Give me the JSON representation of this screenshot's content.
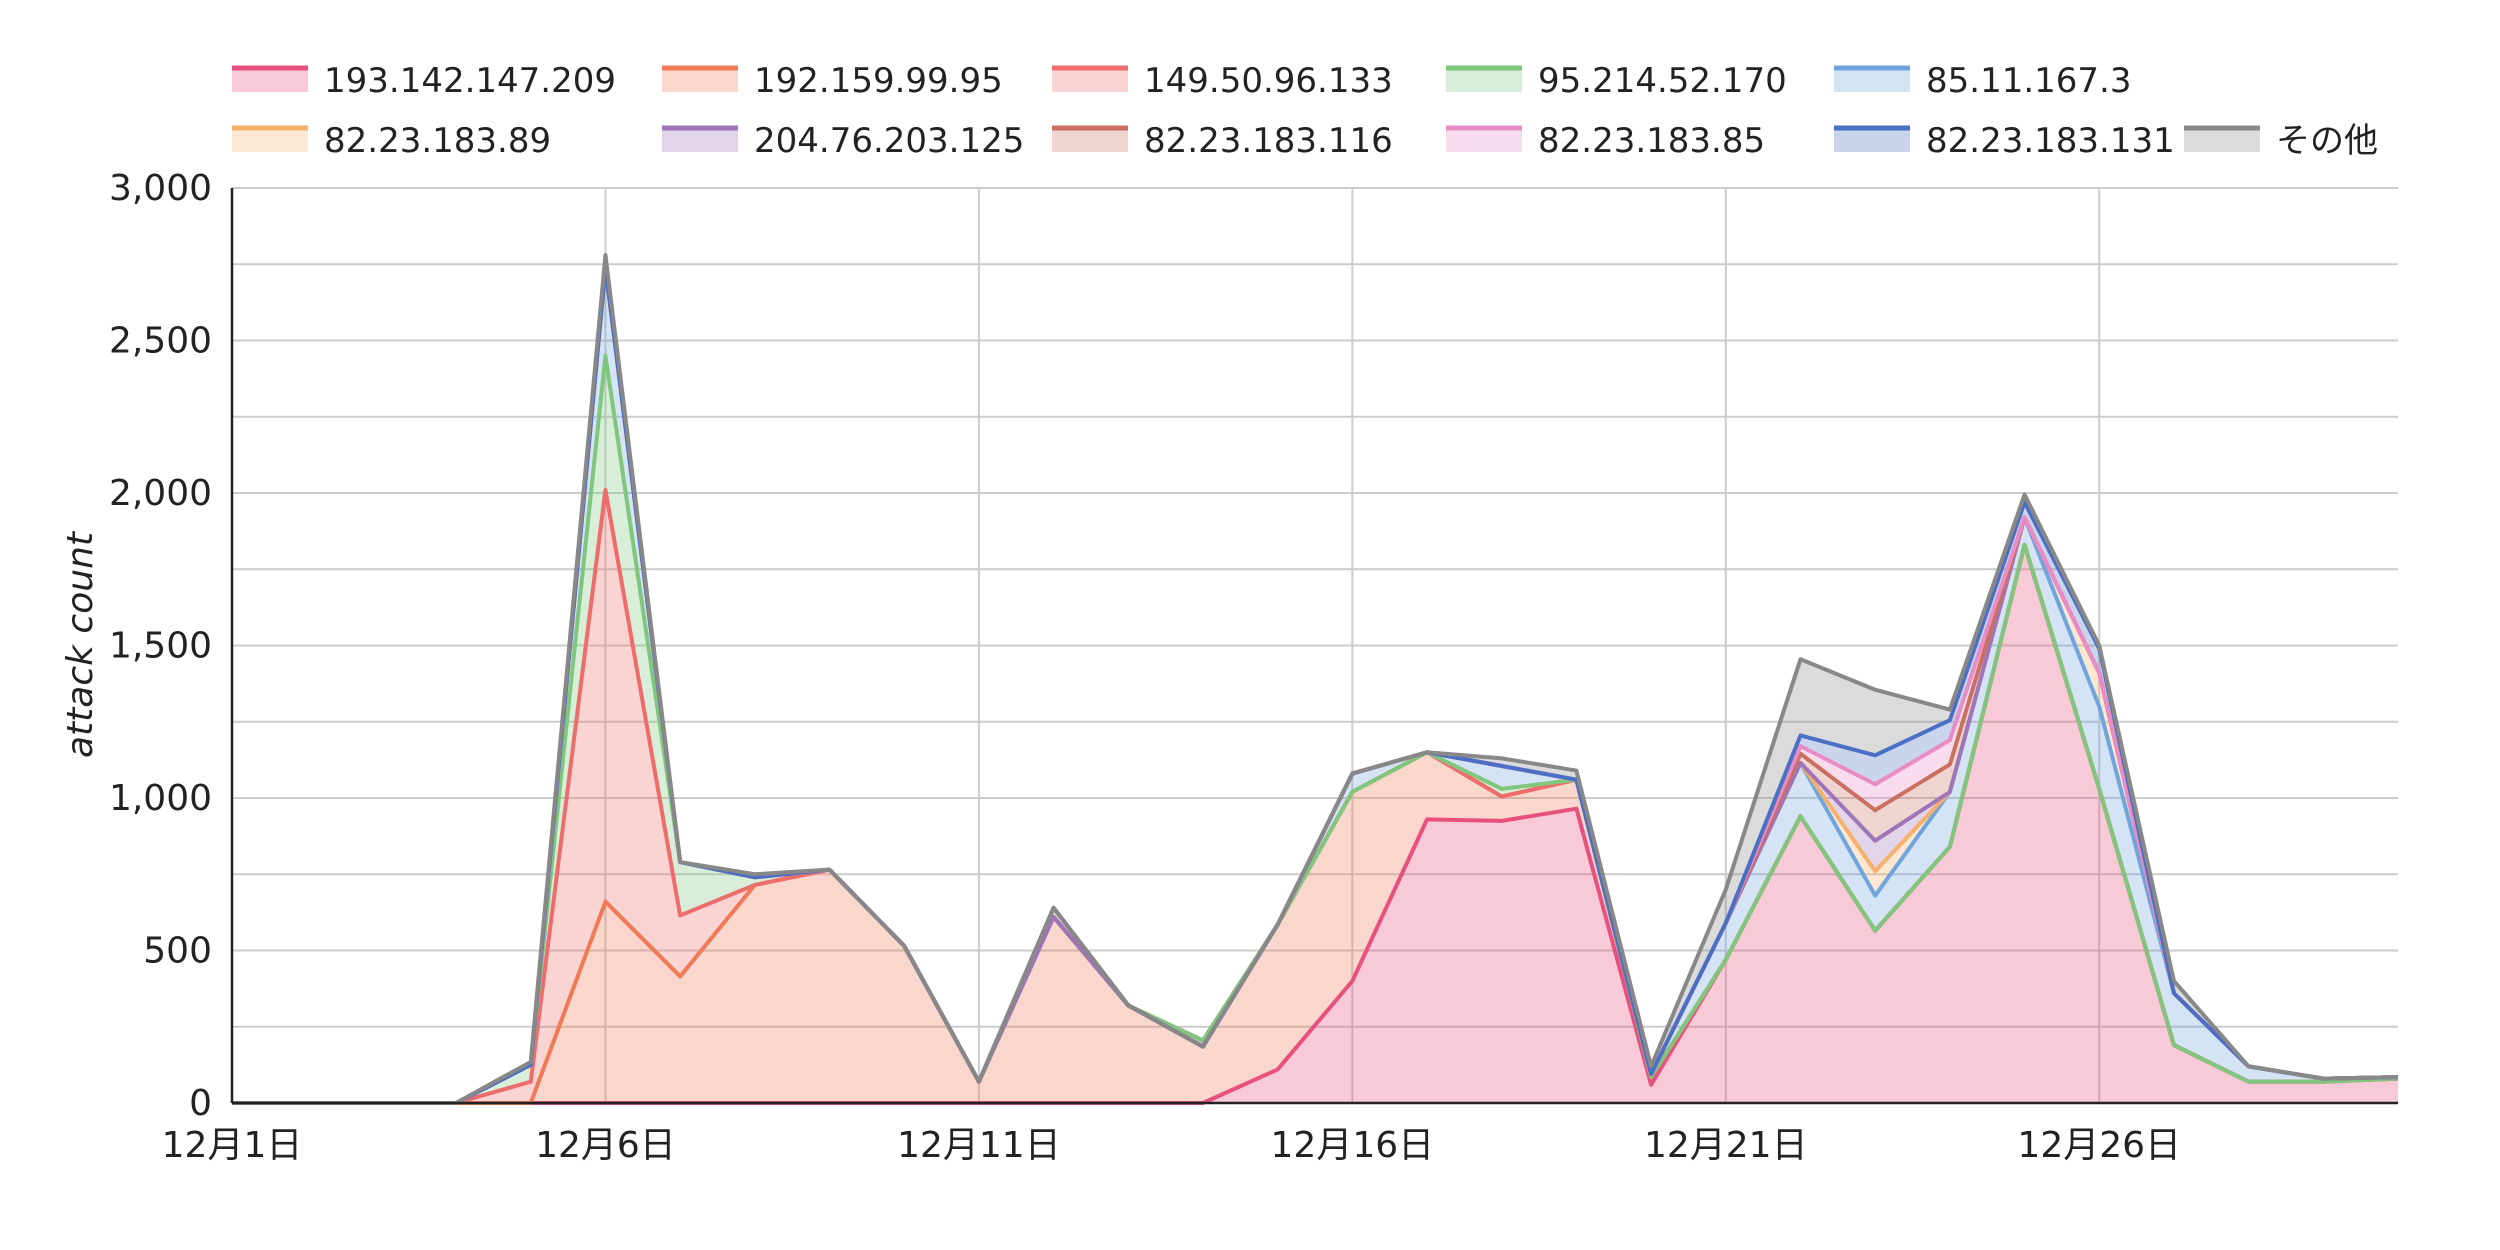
{
  "chart_data": {
    "type": "area",
    "stacked": true,
    "title": "",
    "xlabel": "",
    "ylabel": "attack count",
    "ylim": [
      0,
      3000
    ],
    "yticks": [
      0,
      500,
      1000,
      1500,
      2000,
      2500,
      3000
    ],
    "ytick_labels": [
      "0",
      "500",
      "1,000",
      "1,500",
      "2,000",
      "2,500",
      "3,000"
    ],
    "xticks": [
      "12月1日",
      "12月6日",
      "12月11日",
      "12月16日",
      "12月21日",
      "12月26日"
    ],
    "grid": true,
    "legend_position": "top",
    "x": [
      "12月1日",
      "12月2日",
      "12月3日",
      "12月4日",
      "12月5日",
      "12月6日",
      "12月7日",
      "12月8日",
      "12月9日",
      "12月10日",
      "12月11日",
      "12月12日",
      "12月13日",
      "12月14日",
      "12月15日",
      "12月16日",
      "12月17日",
      "12月18日",
      "12月19日",
      "12月20日",
      "12月21日",
      "12月22日",
      "12月23日",
      "12月24日",
      "12月25日",
      "12月26日",
      "12月27日",
      "12月28日",
      "12月29日",
      "12月30日"
    ],
    "series": [
      {
        "name": "193.142.147.209",
        "color": "#e8507e",
        "values": [
          0,
          0,
          0,
          0,
          0,
          0,
          0,
          0,
          0,
          0,
          0,
          0,
          0,
          0,
          110,
          400,
          930,
          925,
          965,
          60,
          470,
          940,
          565,
          840,
          1830,
          1030,
          190,
          70,
          70,
          80
        ]
      },
      {
        "name": "192.159.99.95",
        "color": "#ef7a55",
        "values": [
          0,
          0,
          0,
          0,
          0,
          660,
          415,
          715,
          765,
          515,
          70,
          610,
          320,
          205,
          475,
          620,
          220,
          80,
          95,
          25,
          0,
          0,
          0,
          0,
          0,
          0,
          0,
          0,
          0,
          0
        ]
      },
      {
        "name": "149.50.96.133",
        "color": "#ee6c6c",
        "values": [
          0,
          0,
          0,
          0,
          70,
          1350,
          200,
          0,
          0,
          0,
          0,
          0,
          0,
          0,
          0,
          0,
          0,
          0,
          0,
          0,
          0,
          0,
          0,
          0,
          0,
          0,
          0,
          0,
          0,
          0
        ]
      },
      {
        "name": "95.214.52.170",
        "color": "#7fc77d",
        "values": [
          0,
          0,
          0,
          0,
          55,
          440,
          175,
          25,
          0,
          0,
          0,
          0,
          0,
          0,
          0,
          0,
          0,
          25,
          0,
          0,
          0,
          0,
          0,
          0,
          0,
          0,
          0,
          0,
          0,
          0
        ]
      },
      {
        "name": "85.11.167.3",
        "color": "#6fa5dc",
        "values": [
          0,
          0,
          0,
          0,
          0,
          290,
          0,
          0,
          0,
          0,
          0,
          0,
          0,
          -20,
          0,
          60,
          0,
          75,
          0,
          10,
          120,
          175,
          115,
          180,
          90,
          270,
          170,
          50,
          10,
          5
        ]
      },
      {
        "name": "82.23.183.89",
        "color": "#f5b06b",
        "values": [
          0,
          0,
          0,
          0,
          0,
          0,
          0,
          0,
          0,
          0,
          0,
          0,
          0,
          0,
          0,
          0,
          0,
          0,
          0,
          0,
          0,
          0,
          80,
          0,
          0,
          110,
          0,
          0,
          0,
          0
        ]
      },
      {
        "name": "204.76.203.125",
        "color": "#9f74b8",
        "values": [
          0,
          0,
          0,
          0,
          0,
          0,
          0,
          0,
          0,
          0,
          0,
          0,
          0,
          0,
          0,
          0,
          0,
          0,
          0,
          0,
          0,
          0,
          100,
          0,
          0,
          0,
          0,
          0,
          0,
          0
        ]
      },
      {
        "name": "82.23.183.116",
        "color": "#c97060",
        "values": [
          0,
          0,
          0,
          0,
          0,
          0,
          0,
          0,
          0,
          0,
          0,
          30,
          0,
          0,
          0,
          0,
          0,
          0,
          0,
          0,
          0,
          30,
          100,
          90,
          0,
          0,
          0,
          0,
          0,
          0
        ]
      },
      {
        "name": "82.23.183.85",
        "color": "#e98bc5",
        "values": [
          0,
          0,
          0,
          0,
          0,
          0,
          0,
          0,
          0,
          0,
          0,
          0,
          0,
          0,
          0,
          0,
          0,
          0,
          0,
          0,
          0,
          25,
          85,
          80,
          0,
          0,
          0,
          0,
          0,
          0
        ]
      },
      {
        "name": "82.23.183.131",
        "color": "#4b6fc4",
        "values": [
          0,
          0,
          0,
          0,
          0,
          0,
          0,
          0,
          0,
          0,
          0,
          0,
          0,
          0,
          0,
          0,
          0,
          0,
          0,
          0,
          0,
          35,
          95,
          65,
          50,
          80,
          0,
          0,
          0,
          0
        ]
      },
      {
        "name": "その他",
        "color": "#888888",
        "values": [
          0,
          0,
          0,
          0,
          10,
          40,
          0,
          10,
          0,
          0,
          0,
          0,
          0,
          0,
          0,
          0,
          0,
          25,
          30,
          25,
          110,
          250,
          215,
          35,
          25,
          10,
          40,
          0,
          0,
          0
        ]
      }
    ]
  }
}
